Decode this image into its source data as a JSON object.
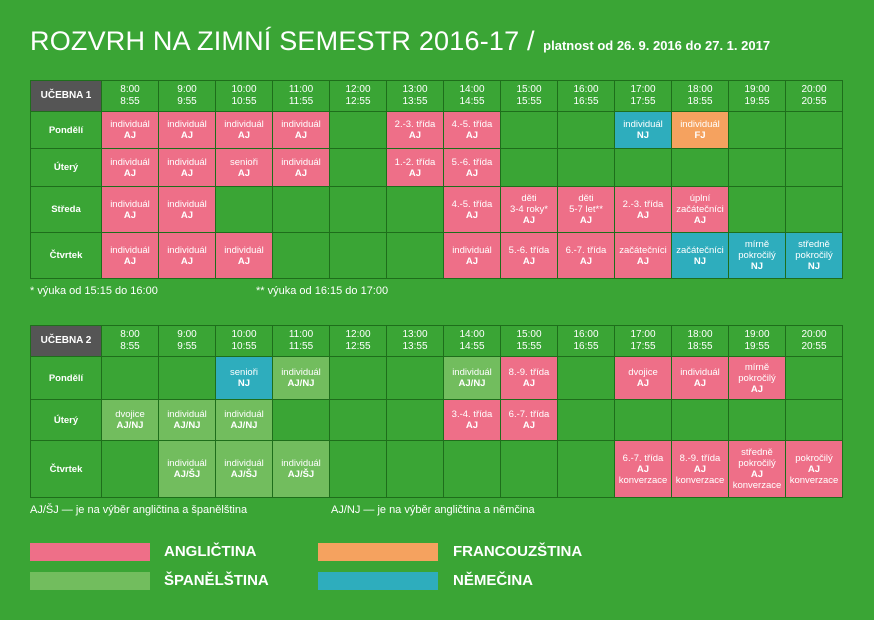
{
  "title": {
    "main": "ROZVRH NA ZIMNÍ SEMESTR 2016-17 /",
    "sub": "platnost od 26. 9. 2016 do 27. 1. 2017"
  },
  "slots": [
    [
      "8:00",
      "8:55"
    ],
    [
      "9:00",
      "9:55"
    ],
    [
      "10:00",
      "10:55"
    ],
    [
      "11:00",
      "11:55"
    ],
    [
      "12:00",
      "12:55"
    ],
    [
      "13:00",
      "13:55"
    ],
    [
      "14:00",
      "14:55"
    ],
    [
      "15:00",
      "15:55"
    ],
    [
      "16:00",
      "16:55"
    ],
    [
      "17:00",
      "17:55"
    ],
    [
      "18:00",
      "18:55"
    ],
    [
      "19:00",
      "19:55"
    ],
    [
      "20:00",
      "20:55"
    ]
  ],
  "tables": [
    {
      "id": "t1",
      "room": "UČEBNA 1",
      "rows": [
        {
          "day": "Pondělí",
          "cells": [
            {
              "lang": "en",
              "lines": [
                "individuál",
                "AJ"
              ]
            },
            {
              "lang": "en",
              "lines": [
                "individuál",
                "AJ"
              ]
            },
            {
              "lang": "en",
              "lines": [
                "individuál",
                "AJ"
              ]
            },
            {
              "lang": "en",
              "lines": [
                "individuál",
                "AJ"
              ]
            },
            null,
            {
              "lang": "en",
              "lines": [
                "2.-3. třída",
                "AJ"
              ]
            },
            {
              "lang": "en",
              "lines": [
                "4.-5. třída",
                "AJ"
              ]
            },
            null,
            null,
            {
              "lang": "de",
              "lines": [
                "individuál",
                "NJ"
              ]
            },
            {
              "lang": "fr",
              "lines": [
                "individuál",
                "FJ"
              ]
            },
            null,
            null
          ]
        },
        {
          "day": "Úterý",
          "cells": [
            {
              "lang": "en",
              "lines": [
                "individuál",
                "AJ"
              ]
            },
            {
              "lang": "en",
              "lines": [
                "individuál",
                "AJ"
              ]
            },
            {
              "lang": "en",
              "lines": [
                "senioři",
                "AJ"
              ]
            },
            {
              "lang": "en",
              "lines": [
                "individuál",
                "AJ"
              ]
            },
            null,
            {
              "lang": "en",
              "lines": [
                "1.-2. třída",
                "AJ"
              ]
            },
            {
              "lang": "en",
              "lines": [
                "5.-6. třída",
                "AJ"
              ]
            },
            null,
            null,
            null,
            null,
            null,
            null
          ]
        },
        {
          "day": "Středa",
          "cells": [
            {
              "lang": "en",
              "lines": [
                "individuál",
                "AJ"
              ]
            },
            {
              "lang": "en",
              "lines": [
                "individuál",
                "AJ"
              ]
            },
            null,
            null,
            null,
            null,
            {
              "lang": "en",
              "lines": [
                "4.-5. třída",
                "AJ"
              ]
            },
            {
              "lang": "en",
              "lines": [
                "děti",
                "3-4 roky*",
                "AJ"
              ]
            },
            {
              "lang": "en",
              "lines": [
                "děti",
                "5-7 let**",
                "AJ"
              ]
            },
            {
              "lang": "en",
              "lines": [
                "2.-3. třída",
                "AJ"
              ]
            },
            {
              "lang": "en",
              "lines": [
                "úplní",
                "začátečníci",
                "AJ"
              ]
            },
            null,
            null
          ]
        },
        {
          "day": "Čtvrtek",
          "cells": [
            {
              "lang": "en",
              "lines": [
                "individuál",
                "AJ"
              ]
            },
            {
              "lang": "en",
              "lines": [
                "individuál",
                "AJ"
              ]
            },
            {
              "lang": "en",
              "lines": [
                "individuál",
                "AJ"
              ]
            },
            null,
            null,
            null,
            {
              "lang": "en",
              "lines": [
                "individuál",
                "AJ"
              ]
            },
            {
              "lang": "en",
              "lines": [
                "5.-6. třída",
                "AJ"
              ]
            },
            {
              "lang": "en",
              "lines": [
                "6.-7. třída",
                "AJ"
              ]
            },
            {
              "lang": "en",
              "lines": [
                "začátečníci",
                "AJ"
              ]
            },
            {
              "lang": "de",
              "lines": [
                "začátečníci",
                "NJ"
              ]
            },
            {
              "lang": "de",
              "lines": [
                "mírně",
                "pokročilý",
                "NJ"
              ]
            },
            {
              "lang": "de",
              "lines": [
                "středně",
                "pokročilý",
                "NJ"
              ]
            }
          ]
        }
      ]
    },
    {
      "id": "t2",
      "room": "UČEBNA 2",
      "rows": [
        {
          "day": "Pondělí",
          "cells": [
            null,
            null,
            {
              "lang": "de",
              "lines": [
                "senioři",
                "NJ"
              ]
            },
            {
              "lang": "es",
              "lines": [
                "individuál",
                "AJ/NJ"
              ]
            },
            null,
            null,
            {
              "lang": "es",
              "lines": [
                "individuál",
                "AJ/NJ"
              ]
            },
            {
              "lang": "en",
              "lines": [
                "8.-9. třída",
                "AJ"
              ]
            },
            null,
            {
              "lang": "en",
              "lines": [
                "dvojice",
                "AJ"
              ]
            },
            {
              "lang": "en",
              "lines": [
                "individuál",
                "AJ"
              ]
            },
            {
              "lang": "en",
              "lines": [
                "mírně",
                "pokročilý",
                "AJ"
              ]
            },
            null
          ]
        },
        {
          "day": "Úterý",
          "cells": [
            {
              "lang": "es",
              "lines": [
                "dvojice",
                "AJ/NJ"
              ]
            },
            {
              "lang": "es",
              "lines": [
                "individuál",
                "AJ/NJ"
              ]
            },
            {
              "lang": "es",
              "lines": [
                "individuál",
                "AJ/NJ"
              ]
            },
            null,
            null,
            null,
            {
              "lang": "en",
              "lines": [
                "3.-4. třída",
                "AJ"
              ]
            },
            {
              "lang": "en",
              "lines": [
                "6.-7. třída",
                "AJ"
              ]
            },
            null,
            null,
            null,
            null,
            null
          ]
        },
        {
          "day": "Čtvrtek",
          "cells": [
            null,
            {
              "lang": "es",
              "lines": [
                "individuál",
                "AJ/ŠJ"
              ]
            },
            {
              "lang": "es",
              "lines": [
                "individuál",
                "AJ/ŠJ"
              ]
            },
            {
              "lang": "es",
              "lines": [
                "individuál",
                "AJ/ŠJ"
              ]
            },
            null,
            null,
            null,
            null,
            null,
            {
              "lang": "en",
              "lines": [
                "6.-7. třída",
                "AJ",
                "konverzace"
              ]
            },
            {
              "lang": "en",
              "lines": [
                "8.-9. třída",
                "AJ",
                "konverzace"
              ]
            },
            {
              "lang": "en",
              "lines": [
                "středně",
                "pokročilý",
                "AJ",
                "konverzace"
              ]
            },
            {
              "lang": "en",
              "lines": [
                "pokročilý",
                "AJ",
                "konverzace"
              ]
            }
          ]
        }
      ]
    }
  ],
  "notes": {
    "n1": "* výuka od 15:15 do 16:00",
    "n2": "** výuka od 16:15 do 17:00",
    "n3": "AJ/ŠJ — je na výběr angličtina a španělština",
    "n4": "AJ/NJ — je na výběr angličtina a němčina"
  },
  "legend": {
    "en": "ANGLIČTINA",
    "es": "ŠPANĚLŠTINA",
    "fr": "FRANCOUZŠTINA",
    "de": "NĚMEČINA"
  },
  "colors": {
    "background": "#3aa535",
    "en": "#ee6f88",
    "es": "#72bd5e",
    "fr": "#f5a25f",
    "de": "#2eadbd",
    "room_header": "#555555"
  }
}
